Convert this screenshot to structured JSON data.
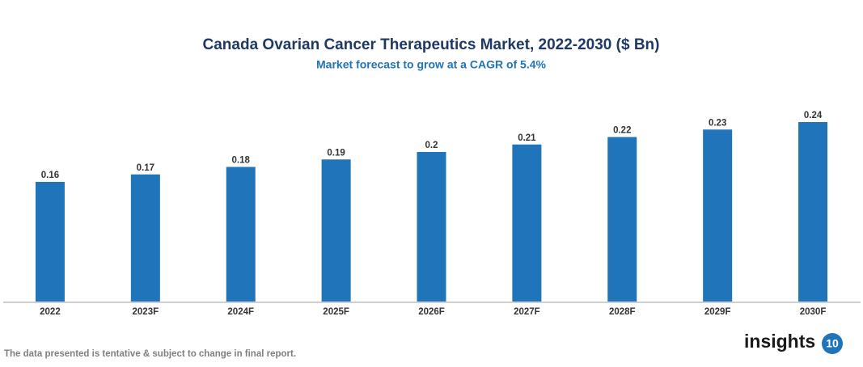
{
  "chart_data": {
    "type": "bar",
    "title": "Canada Ovarian Cancer Therapeutics Market, 2022-2030 ($ Bn)",
    "subtitle": "Market forecast to grow at a CAGR of 5.4%",
    "categories": [
      "2022",
      "2023F",
      "2024F",
      "2025F",
      "2026F",
      "2027F",
      "2028F",
      "2029F",
      "2030F"
    ],
    "values": [
      0.16,
      0.17,
      0.18,
      0.19,
      0.2,
      0.21,
      0.22,
      0.23,
      0.24
    ],
    "color": "#1f74ba"
  },
  "footer": {
    "note": "The data presented is tentative & subject to change in final report.",
    "logo_text": "insights",
    "logo_badge": "10"
  }
}
